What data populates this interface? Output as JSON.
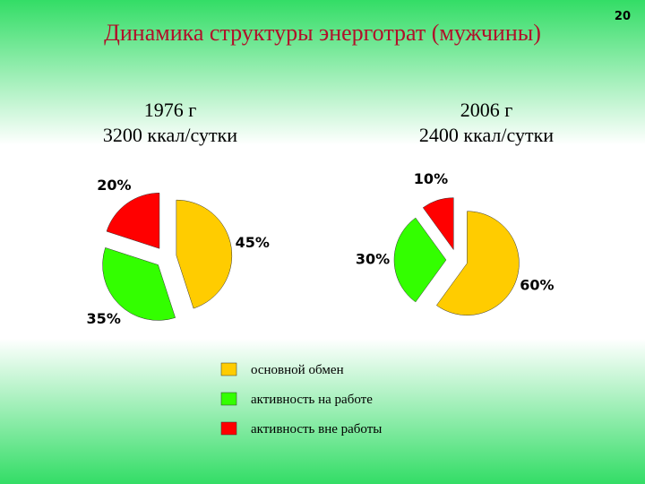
{
  "title": "Динамика структуры энерготрат (мужчины)",
  "page_number": "20",
  "chart_data": [
    {
      "type": "pie",
      "title": "1976 г",
      "subtitle": "3200 ккал/сутки",
      "categories": [
        "основной обмен",
        "активность на работе",
        "активность вне работы"
      ],
      "values": [
        45,
        35,
        20
      ],
      "value_labels": [
        "45%",
        "35%",
        "20%"
      ],
      "colors": [
        "#ffcc00",
        "#33ff00",
        "#ff0000"
      ]
    },
    {
      "type": "pie",
      "title": "2006 г",
      "subtitle": "2400 ккал/сутки",
      "categories": [
        "основной обмен",
        "активность на работе",
        "активность вне работы"
      ],
      "values": [
        60,
        30,
        10
      ],
      "value_labels": [
        "60%",
        "30%",
        "10%"
      ],
      "colors": [
        "#ffcc00",
        "#33ff00",
        "#ff0000"
      ]
    }
  ]
}
